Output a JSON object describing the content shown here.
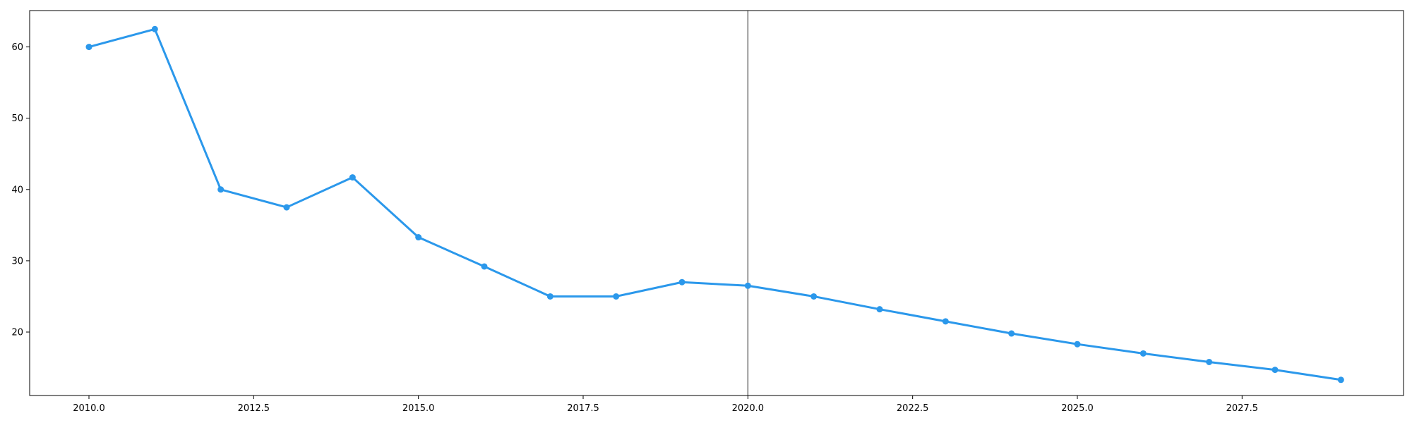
{
  "chart_data": {
    "type": "line",
    "title": "",
    "xlabel": "",
    "ylabel": "",
    "xlim": [
      2009.1,
      2029.95
    ],
    "ylim": [
      11.1,
      65.1
    ],
    "x_ticks": [
      {
        "value": 2010,
        "label": "2010.0"
      },
      {
        "value": 2012.5,
        "label": "2012.5"
      },
      {
        "value": 2015,
        "label": "2015.0"
      },
      {
        "value": 2017.5,
        "label": "2017.5"
      },
      {
        "value": 2020,
        "label": "2020.0"
      },
      {
        "value": 2022.5,
        "label": "2022.5"
      },
      {
        "value": 2025,
        "label": "2025.0"
      },
      {
        "value": 2027.5,
        "label": "2027.5"
      }
    ],
    "y_ticks": [
      {
        "value": 20,
        "label": "20"
      },
      {
        "value": 30,
        "label": "30"
      },
      {
        "value": 40,
        "label": "40"
      },
      {
        "value": 50,
        "label": "50"
      },
      {
        "value": 60,
        "label": "60"
      }
    ],
    "grid": false,
    "legend": "none",
    "vertical_reference_line": {
      "x": 2020,
      "color": "#555555"
    },
    "series": [
      {
        "color": "#2b98eb",
        "x": [
          2010,
          2011,
          2012,
          2013,
          2014,
          2015,
          2016,
          2017,
          2018,
          2019,
          2020,
          2021,
          2022,
          2023,
          2024,
          2025,
          2026,
          2027,
          2028,
          2029
        ],
        "y": [
          60.0,
          62.5,
          40.0,
          37.5,
          41.7,
          33.3,
          29.2,
          25.0,
          25.0,
          27.0,
          26.5,
          25.0,
          23.2,
          21.5,
          19.8,
          18.3,
          17.0,
          15.8,
          14.7,
          13.3
        ]
      }
    ]
  }
}
